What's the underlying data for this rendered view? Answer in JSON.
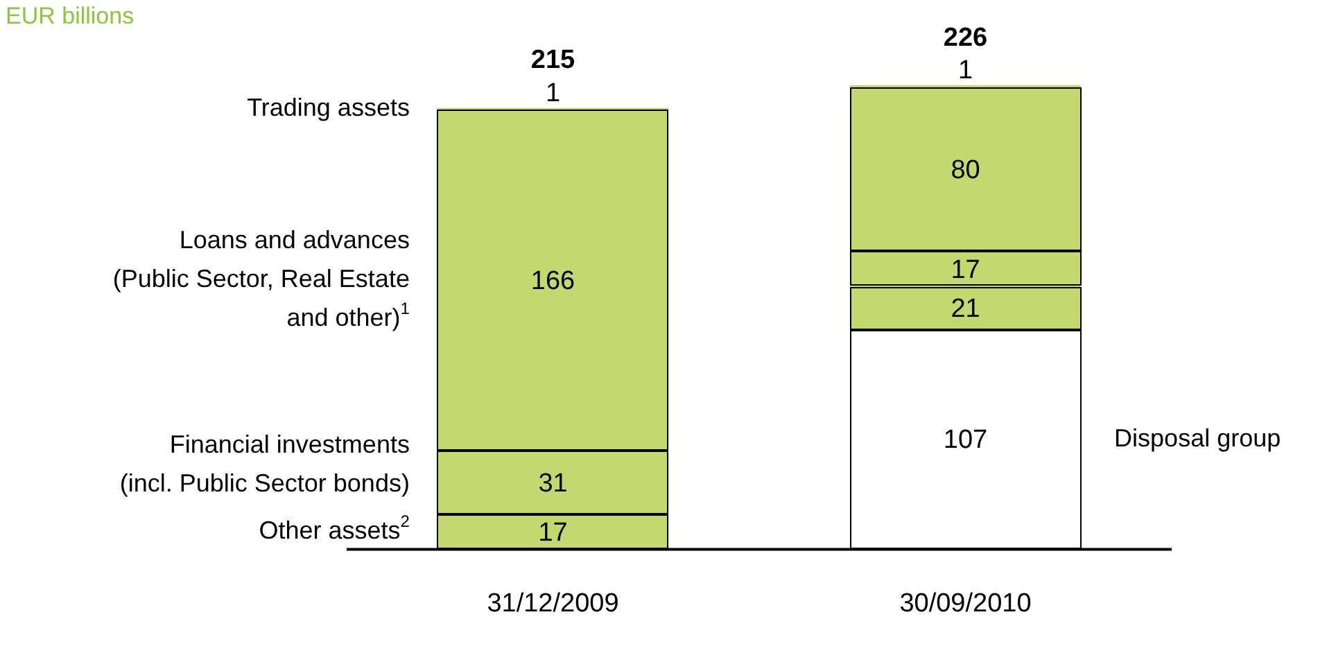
{
  "chart_data": {
    "type": "bar",
    "title": "EUR billions",
    "categories": [
      "31/12/2009",
      "30/09/2010"
    ],
    "stacked": true,
    "tick_labels": "x",
    "grid": false,
    "legend": false,
    "data_labels": true,
    "totals": [
      "215",
      "226"
    ],
    "series": [
      {
        "name": "Disposal group",
        "color": "#ffffff",
        "values": [
          null,
          107
        ]
      },
      {
        "name": "Other assets$^{2}$",
        "color": "#c3d86e",
        "values": [
          17,
          null
        ]
      },
      {
        "name": "Financial investments (incl. Public Sector bonds)",
        "color": "#c3d86e",
        "values": [
          31,
          null
        ]
      },
      {
        "name": "Loans and advances (Public Sector, Real Estate and other)$^{1}$",
        "color": "#c3d86e",
        "values": [
          166,
          null
        ]
      },
      {
        "name": "Trading assets",
        "color": "#c3d86e",
        "values": [
          1,
          null
        ]
      },
      {
        "color": "#c3d86e",
        "values": [
          null,
          21
        ]
      },
      {
        "color": "#c3d86e",
        "values": [
          null,
          17
        ]
      },
      {
        "color": "#c3d86e",
        "values": [
          null,
          80
        ]
      },
      {
        "color": "#c3d86e",
        "values": [
          null,
          1
        ]
      }
    ]
  }
}
